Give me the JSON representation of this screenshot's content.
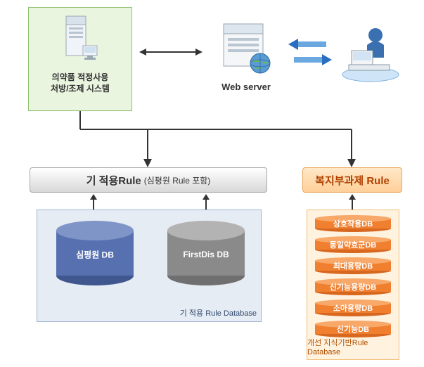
{
  "top": {
    "system_caption_line1": "의약품 적정사용",
    "system_caption_line2": "처방/조제 시스템",
    "webserver_label": "Web server"
  },
  "rules": {
    "left_title": "기 적용Rule",
    "left_sub": "(심평원 Rule 포함)",
    "right_title": "복지부과제 Rule"
  },
  "left_db": {
    "panel_caption": "기 적용 Rule Database",
    "cyl1_label": "심평원 DB",
    "cyl2_label": "FirstDis DB"
  },
  "right_db": {
    "panel_caption": "개선 지식기반Rule Database",
    "items": [
      "상호작용DB",
      "동일약효군DB",
      "최대용량DB",
      "신기능용량DB",
      "소아용량DB",
      "신기능DB"
    ]
  },
  "colors": {
    "system_box_bg": "#eaf5e0",
    "system_box_border": "#8fc070",
    "rule_left_text": "#333333",
    "rule_right_text": "#b04000",
    "rule_right_bg1": "#ffe8c8",
    "rule_right_bg2": "#ffcf99",
    "left_panel_bg": "#e6ecf4",
    "left_panel_border": "#9fb3cf",
    "right_panel_bg": "#fff2df",
    "right_panel_border": "#f0c079",
    "cyl_blue": "#5670b0",
    "cyl_blue_top": "#7f95c8",
    "cyl_gray": "#8a8a8a",
    "cyl_gray_top": "#b3b3b3",
    "orange_pill": "#f08030",
    "orange_pill_top": "#f8a868",
    "arrow_blue": "#2a6fbf",
    "arrow_dark": "#333333",
    "connector": "#333333"
  },
  "type": "flowchart"
}
